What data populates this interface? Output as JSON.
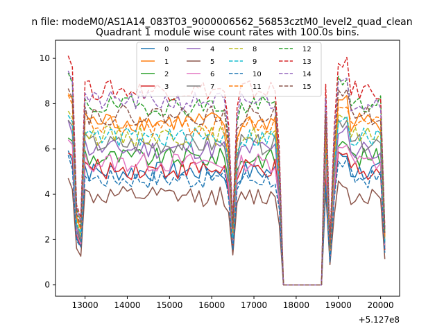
{
  "suptitle": "n file: modeM0/AS1A14_083T03_9000006562_56853cztM0_level2_quad_clean",
  "chart_data": {
    "type": "line",
    "title": "Quadrant 1 module wise count rates with 100.0s bins.",
    "xlabel": "",
    "ylabel": "",
    "x_offset_label": "+5.127e8",
    "xlim": [
      12300,
      20450
    ],
    "ylim": [
      -0.5,
      10.8
    ],
    "xticks": [
      13000,
      14000,
      15000,
      16000,
      17000,
      18000,
      19000,
      20000
    ],
    "xtick_labels": [
      "13000",
      "14000",
      "15000",
      "16000",
      "17000",
      "18000",
      "19000",
      "20000"
    ],
    "yticks": [
      0,
      2,
      4,
      6,
      8,
      10
    ],
    "ytick_labels": [
      "0",
      "2",
      "4",
      "6",
      "8",
      "10"
    ],
    "x": [
      12600,
      12700,
      12800,
      12900,
      13000,
      13100,
      13200,
      13300,
      13400,
      13500,
      13600,
      13700,
      13800,
      13900,
      14000,
      14100,
      14200,
      14300,
      14400,
      14500,
      14600,
      14700,
      14800,
      14900,
      15000,
      15100,
      15200,
      15300,
      15400,
      15500,
      15600,
      15700,
      15800,
      15900,
      16000,
      16100,
      16200,
      16300,
      16400,
      16500,
      16600,
      16700,
      16800,
      16900,
      17000,
      17100,
      17200,
      17300,
      17400,
      17500,
      17600,
      17700,
      17800,
      17900,
      18000,
      18100,
      18200,
      18300,
      18400,
      18500,
      18600,
      18700,
      18800,
      18900,
      19000,
      19100,
      19200,
      19300,
      19400,
      19500,
      19600,
      19700,
      19800,
      19900,
      20000,
      20100
    ],
    "legend": {
      "placement": "upper-center",
      "columns": 4
    },
    "series": [
      {
        "name": "0",
        "color": "#1f77b4",
        "dashed": false,
        "level": 5.0
      },
      {
        "name": "1",
        "color": "#ff7f0e",
        "dashed": false,
        "level": 7.2
      },
      {
        "name": "2",
        "color": "#2ca02c",
        "dashed": false,
        "level": 5.6
      },
      {
        "name": "3",
        "color": "#d62728",
        "dashed": false,
        "level": 5.1
      },
      {
        "name": "4",
        "color": "#9467bd",
        "dashed": false,
        "level": 6.0
      },
      {
        "name": "5",
        "color": "#8c564b",
        "dashed": false,
        "level": 3.9
      },
      {
        "name": "6",
        "color": "#e377c2",
        "dashed": false,
        "level": 5.4
      },
      {
        "name": "7",
        "color": "#7f7f7f",
        "dashed": false,
        "level": 6.2
      },
      {
        "name": "8",
        "color": "#bcbd22",
        "dashed": true,
        "level": 6.6
      },
      {
        "name": "9",
        "color": "#17becf",
        "dashed": true,
        "level": 6.5
      },
      {
        "name": "10",
        "color": "#1f77b4",
        "dashed": true,
        "level": 4.7
      },
      {
        "name": "11",
        "color": "#ff7f0e",
        "dashed": true,
        "level": 7.0
      },
      {
        "name": "12",
        "color": "#2ca02c",
        "dashed": true,
        "level": 7.9
      },
      {
        "name": "13",
        "color": "#d62728",
        "dashed": true,
        "level": 8.6
      },
      {
        "name": "14",
        "color": "#9467bd",
        "dashed": true,
        "level": 8.1
      },
      {
        "name": "15",
        "color": "#8c564b",
        "dashed": true,
        "level": 7.5
      }
    ]
  }
}
